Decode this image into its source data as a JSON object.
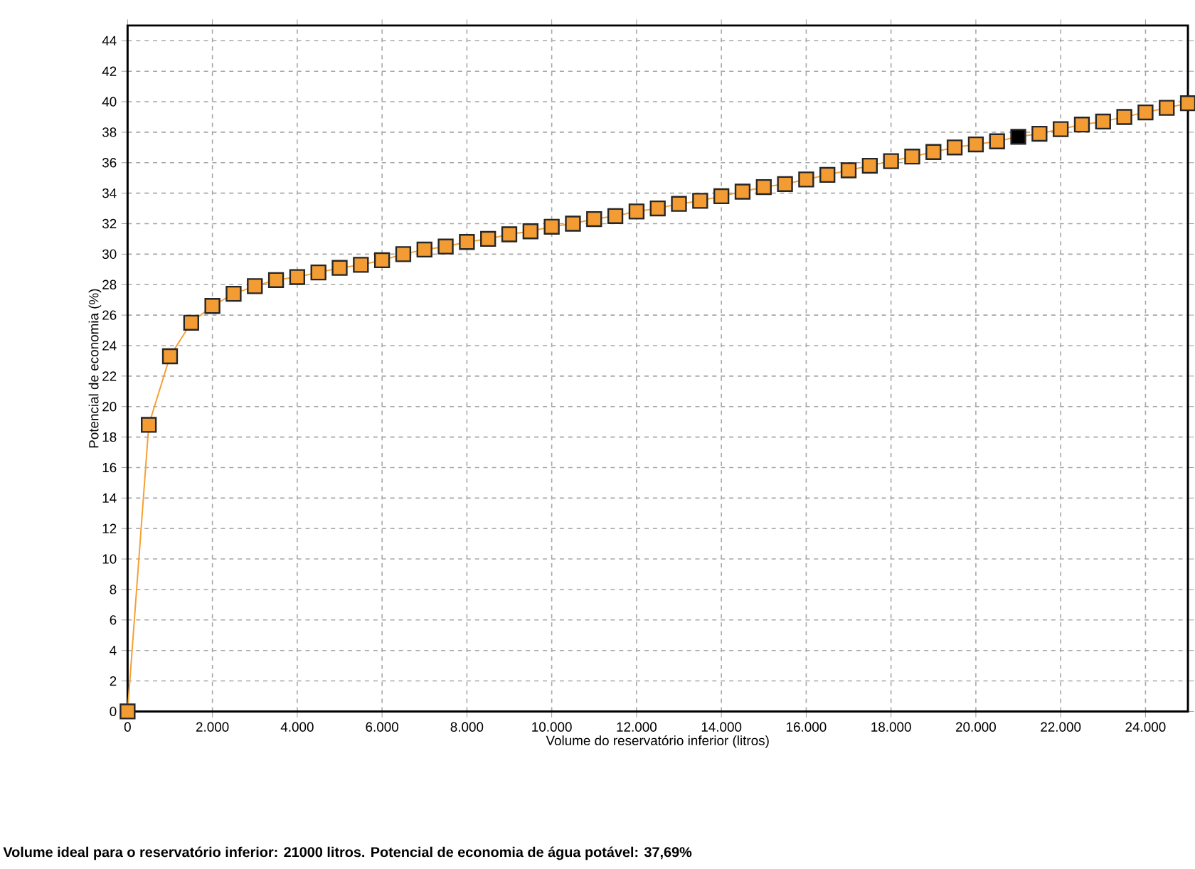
{
  "chart_data": {
    "type": "line",
    "xlabel": "Volume do reservatório inferior (litros)",
    "ylabel": "Potencial de economia (%)",
    "annotations": [
      "Volume ideal para o reservatório inferior: 21000 litros. Potencial de economia de água potável: 37,69%"
    ],
    "x": [
      0,
      500,
      1000,
      1500,
      2000,
      2500,
      3000,
      3500,
      4000,
      4500,
      5000,
      5500,
      6000,
      6500,
      7000,
      7500,
      8000,
      8500,
      9000,
      9500,
      10000,
      10500,
      11000,
      11500,
      12000,
      12500,
      13000,
      13500,
      14000,
      14500,
      15000,
      15500,
      16000,
      16500,
      17000,
      17500,
      18000,
      18500,
      19000,
      19500,
      20000,
      20500,
      21000,
      21500,
      22000,
      22500,
      23000,
      23500,
      24000,
      24500,
      25000
    ],
    "series": [
      {
        "color": "#f5a033",
        "values": [
          0,
          18.8,
          23.3,
          25.5,
          26.6,
          27.4,
          27.9,
          28.3,
          28.5,
          28.8,
          29.1,
          29.3,
          29.6,
          30.0,
          30.3,
          30.5,
          30.8,
          31.0,
          31.3,
          31.5,
          31.8,
          32.0,
          32.3,
          32.5,
          32.8,
          33.0,
          33.3,
          33.5,
          33.8,
          34.1,
          34.4,
          34.6,
          34.9,
          35.2,
          35.5,
          35.8,
          36.1,
          36.4,
          36.7,
          37.0,
          37.2,
          37.4,
          37.7,
          37.9,
          38.2,
          38.5,
          38.7,
          39.0,
          39.3,
          39.6,
          39.9
        ],
        "colors": [
          "#f39c33",
          "#f39c33",
          "#f39c33",
          "#f39c33",
          "#f39c33",
          "#f39c33",
          "#f39c33",
          "#f39c33",
          "#f39c33",
          "#f39c33",
          "#f39c33",
          "#f39c33",
          "#f39c33",
          "#f39c33",
          "#f39c33",
          "#f39c33",
          "#f39c33",
          "#f39c33",
          "#f39c33",
          "#f39c33",
          "#f39c33",
          "#f39c33",
          "#f39c33",
          "#f39c33",
          "#f39c33",
          "#f39c33",
          "#f39c33",
          "#f39c33",
          "#f39c33",
          "#f39c33",
          "#f39c33",
          "#f39c33",
          "#f39c33",
          "#f39c33",
          "#f39c33",
          "#f39c33",
          "#f39c33",
          "#f39c33",
          "#f39c33",
          "#f39c33",
          "#f39c33",
          "#f39c33",
          "#000000",
          "#f39c33",
          "#f39c33",
          "#f39c33",
          "#f39c33",
          "#f39c33",
          "#f39c33",
          "#f39c33",
          "#f39c33"
        ]
      }
    ],
    "xlim": [
      0,
      25000
    ],
    "ylim": [
      0,
      45
    ],
    "xticks": [
      0,
      {
        "value": 2000,
        "label": "2.000"
      },
      {
        "value": 4000,
        "label": "4.000"
      },
      {
        "value": 6000,
        "label": "6.000"
      },
      {
        "value": 8000,
        "label": "8.000"
      },
      {
        "value": 10000,
        "label": "10.000"
      },
      {
        "value": 12000,
        "label": "12.000"
      },
      {
        "value": 14000,
        "label": "14.000"
      },
      {
        "value": 16000,
        "label": "16.000"
      },
      {
        "value": 18000,
        "label": "18.000"
      },
      {
        "value": 20000,
        "label": "20.000"
      },
      {
        "value": 22000,
        "label": "22.000"
      },
      {
        "value": 24000,
        "label": "24.000"
      }
    ],
    "yticks": [
      0,
      2,
      4,
      6,
      8,
      10,
      12,
      14,
      16,
      18,
      20,
      22,
      24,
      26,
      28,
      30,
      32,
      34,
      36,
      38,
      40,
      42,
      44
    ],
    "grid": true,
    "marker": "square",
    "line_style": "solid"
  }
}
